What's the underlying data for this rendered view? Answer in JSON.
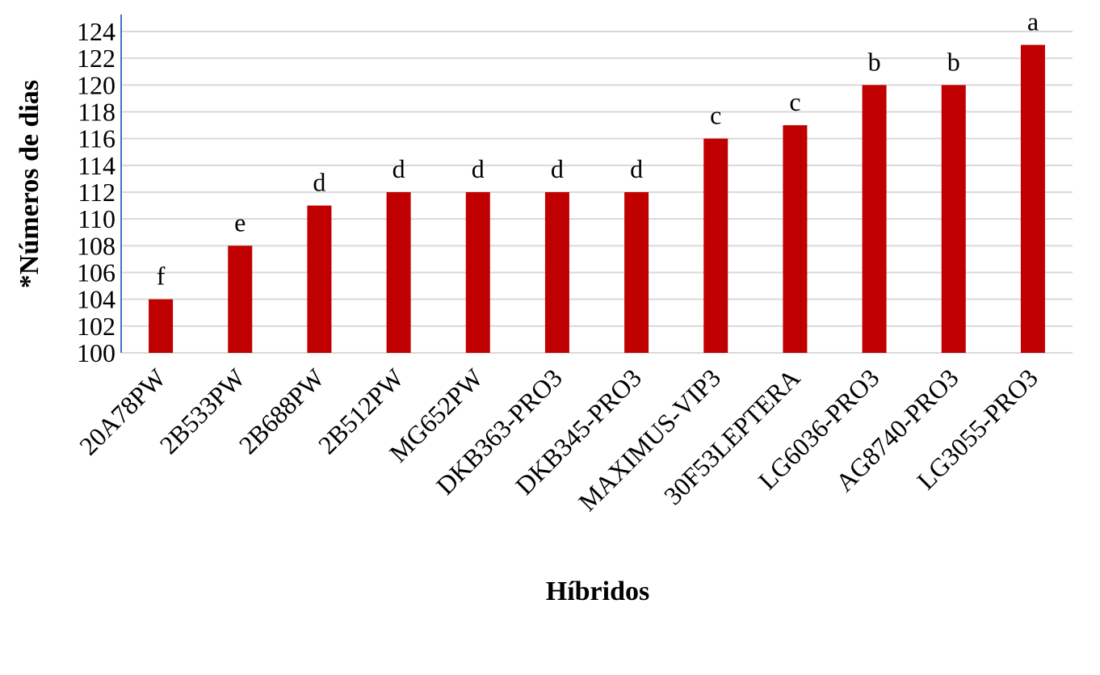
{
  "chart_data": {
    "type": "bar",
    "categories": [
      "20A78PW",
      "2B533PW",
      "2B688PW",
      "2B512PW",
      "MG652PW",
      "DKB363-PRO3",
      "DKB345-PRO3",
      "MAXIMUS-VIP3",
      "30F53LEPTERA",
      "LG6036-PRO3",
      "AG8740-PRO3",
      "LG3055-PRO3"
    ],
    "values": [
      104,
      108,
      111,
      112,
      112,
      112,
      112,
      116,
      117,
      120,
      120,
      123
    ],
    "data_labels": [
      "f",
      "e",
      "d",
      "d",
      "d",
      "d",
      "d",
      "c",
      "c",
      "b",
      "b",
      "a"
    ],
    "title": "",
    "xlabel": "Híbridos",
    "ylabel": "*Números de dias",
    "ylim": [
      100,
      124
    ],
    "yticks": [
      100,
      102,
      104,
      106,
      108,
      110,
      112,
      114,
      116,
      118,
      120,
      122,
      124
    ],
    "grid": true,
    "colors": {
      "bar": "#C00000",
      "grid": "#d9d9d9",
      "axis": "#4472c4"
    }
  }
}
